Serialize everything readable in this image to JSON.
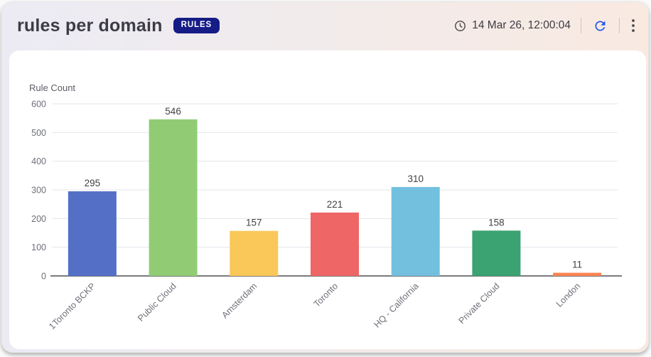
{
  "header": {
    "title": "rules per domain",
    "badge": "RULES",
    "timestamp": "14 Mar 26, 12:00:04"
  },
  "icons": {
    "clock": "clock-icon",
    "refresh": "refresh-icon",
    "menu": "kebab-menu-icon"
  },
  "colors": {
    "badge_bg": "#151c86",
    "refresh_icon": "#2458e9",
    "icon_gray": "#4a4a4a",
    "card_gradient_left": "#ecebf4",
    "card_gradient_right": "#f9eae1",
    "panel_bg": "#ffffff",
    "gridline": "#e3e6ee",
    "axis_line": "#4e4e54",
    "tick_text": "#6e7079",
    "value_label": "#424242"
  },
  "chart_data": {
    "type": "bar",
    "title": "rules per domain",
    "xlabel": "",
    "ylabel": "Rule Count",
    "categories": [
      "1Toronto BCKP",
      "Public Cloud",
      "Amsterdam",
      "Toronto",
      "HQ - California",
      "Private Cloud",
      "London"
    ],
    "values": [
      295,
      546,
      157,
      221,
      310,
      158,
      11
    ],
    "bar_colors": [
      "#5470c6",
      "#91cc75",
      "#fac858",
      "#ee6666",
      "#73c0de",
      "#3ba272",
      "#fc8452"
    ],
    "ylim": [
      0,
      600
    ],
    "ytick_step": 100,
    "grid": true,
    "value_labels": true,
    "xtick_rotation": 45,
    "legend": false
  }
}
